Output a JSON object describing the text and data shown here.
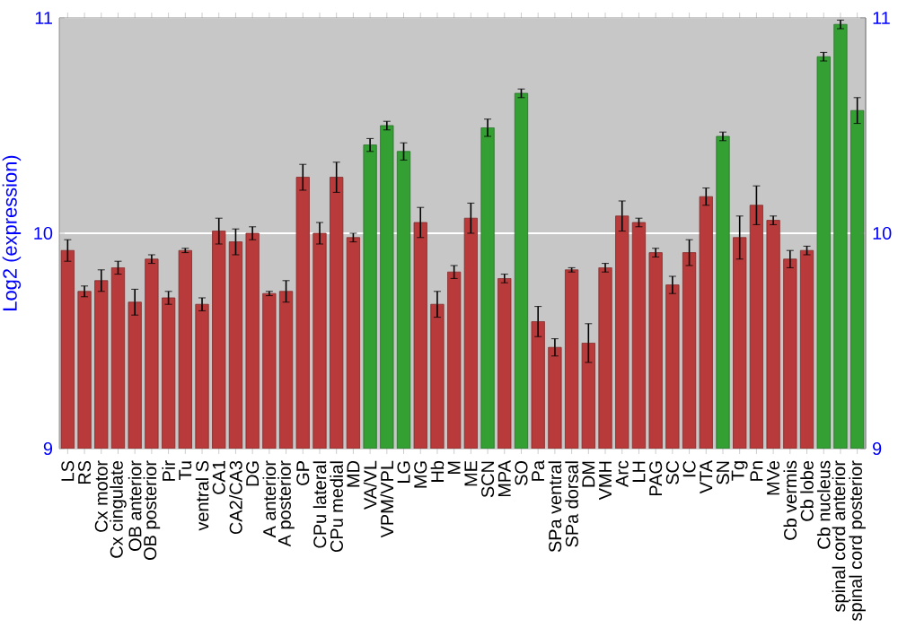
{
  "chart_data": {
    "type": "bar",
    "ylabel": "Log2 (expression)",
    "categories": [
      "LS",
      "RS",
      "Cx motor",
      "Cx cingulate",
      "OB anterior",
      "OB posterior",
      "Pir",
      "Tu",
      "ventral S",
      "CA1",
      "CA2/CA3",
      "DG",
      "A anterior",
      "A posterior",
      "GP",
      "CPu lateral",
      "CPu medial",
      "MD",
      "VA/VL",
      "VPM/VPL",
      "LG",
      "MG",
      "Hb",
      "M",
      "ME",
      "SCN",
      "MPA",
      "SO",
      "Pa",
      "SPa ventral",
      "SPa dorsal",
      "DM",
      "VMH",
      "Arc",
      "LH",
      "PAG",
      "SC",
      "IC",
      "VTA",
      "SN",
      "Tg",
      "Pn",
      "MVe",
      "Cb vermis",
      "Cb lobe",
      "Cb nucleus",
      "spinal cord anterior",
      "spinal cord posterior"
    ],
    "values": [
      9.92,
      9.73,
      9.78,
      9.84,
      9.68,
      9.88,
      9.7,
      9.92,
      9.67,
      10.01,
      9.96,
      10.0,
      9.72,
      9.73,
      10.26,
      10.0,
      10.26,
      9.98,
      10.41,
      10.5,
      10.38,
      10.05,
      9.67,
      9.82,
      10.07,
      10.49,
      9.79,
      10.65,
      9.59,
      9.47,
      9.83,
      9.49,
      9.84,
      10.08,
      10.05,
      9.91,
      9.76,
      9.91,
      10.17,
      10.45,
      9.98,
      10.13,
      10.06,
      9.88,
      9.92,
      10.82,
      10.97,
      10.57
    ],
    "errors": [
      0.05,
      0.025,
      0.05,
      0.03,
      0.06,
      0.02,
      0.03,
      0.01,
      0.03,
      0.06,
      0.06,
      0.03,
      0.01,
      0.05,
      0.06,
      0.05,
      0.07,
      0.02,
      0.03,
      0.02,
      0.04,
      0.07,
      0.06,
      0.03,
      0.07,
      0.04,
      0.02,
      0.02,
      0.07,
      0.04,
      0.01,
      0.09,
      0.02,
      0.07,
      0.02,
      0.02,
      0.04,
      0.06,
      0.04,
      0.02,
      0.1,
      0.09,
      0.02,
      0.04,
      0.02,
      0.02,
      0.02,
      0.06
    ],
    "colors": [
      "#b83a3a",
      "#b83a3a",
      "#b83a3a",
      "#b83a3a",
      "#b83a3a",
      "#b83a3a",
      "#b83a3a",
      "#b83a3a",
      "#b83a3a",
      "#b83a3a",
      "#b83a3a",
      "#b83a3a",
      "#b83a3a",
      "#b83a3a",
      "#b83a3a",
      "#b83a3a",
      "#b83a3a",
      "#b83a3a",
      "#34a034",
      "#34a034",
      "#34a034",
      "#b83a3a",
      "#b83a3a",
      "#b83a3a",
      "#b83a3a",
      "#34a034",
      "#b83a3a",
      "#34a034",
      "#b83a3a",
      "#b83a3a",
      "#b83a3a",
      "#b83a3a",
      "#b83a3a",
      "#b83a3a",
      "#b83a3a",
      "#b83a3a",
      "#b83a3a",
      "#b83a3a",
      "#b83a3a",
      "#34a034",
      "#b83a3a",
      "#b83a3a",
      "#b83a3a",
      "#b83a3a",
      "#b83a3a",
      "#34a034",
      "#34a034",
      "#34a034"
    ],
    "ylim": [
      9,
      11
    ],
    "yticks": [
      9,
      10,
      11
    ],
    "y2lim": [
      9,
      11
    ],
    "y2ticks": [
      9,
      10,
      11
    ],
    "grid": "y"
  }
}
